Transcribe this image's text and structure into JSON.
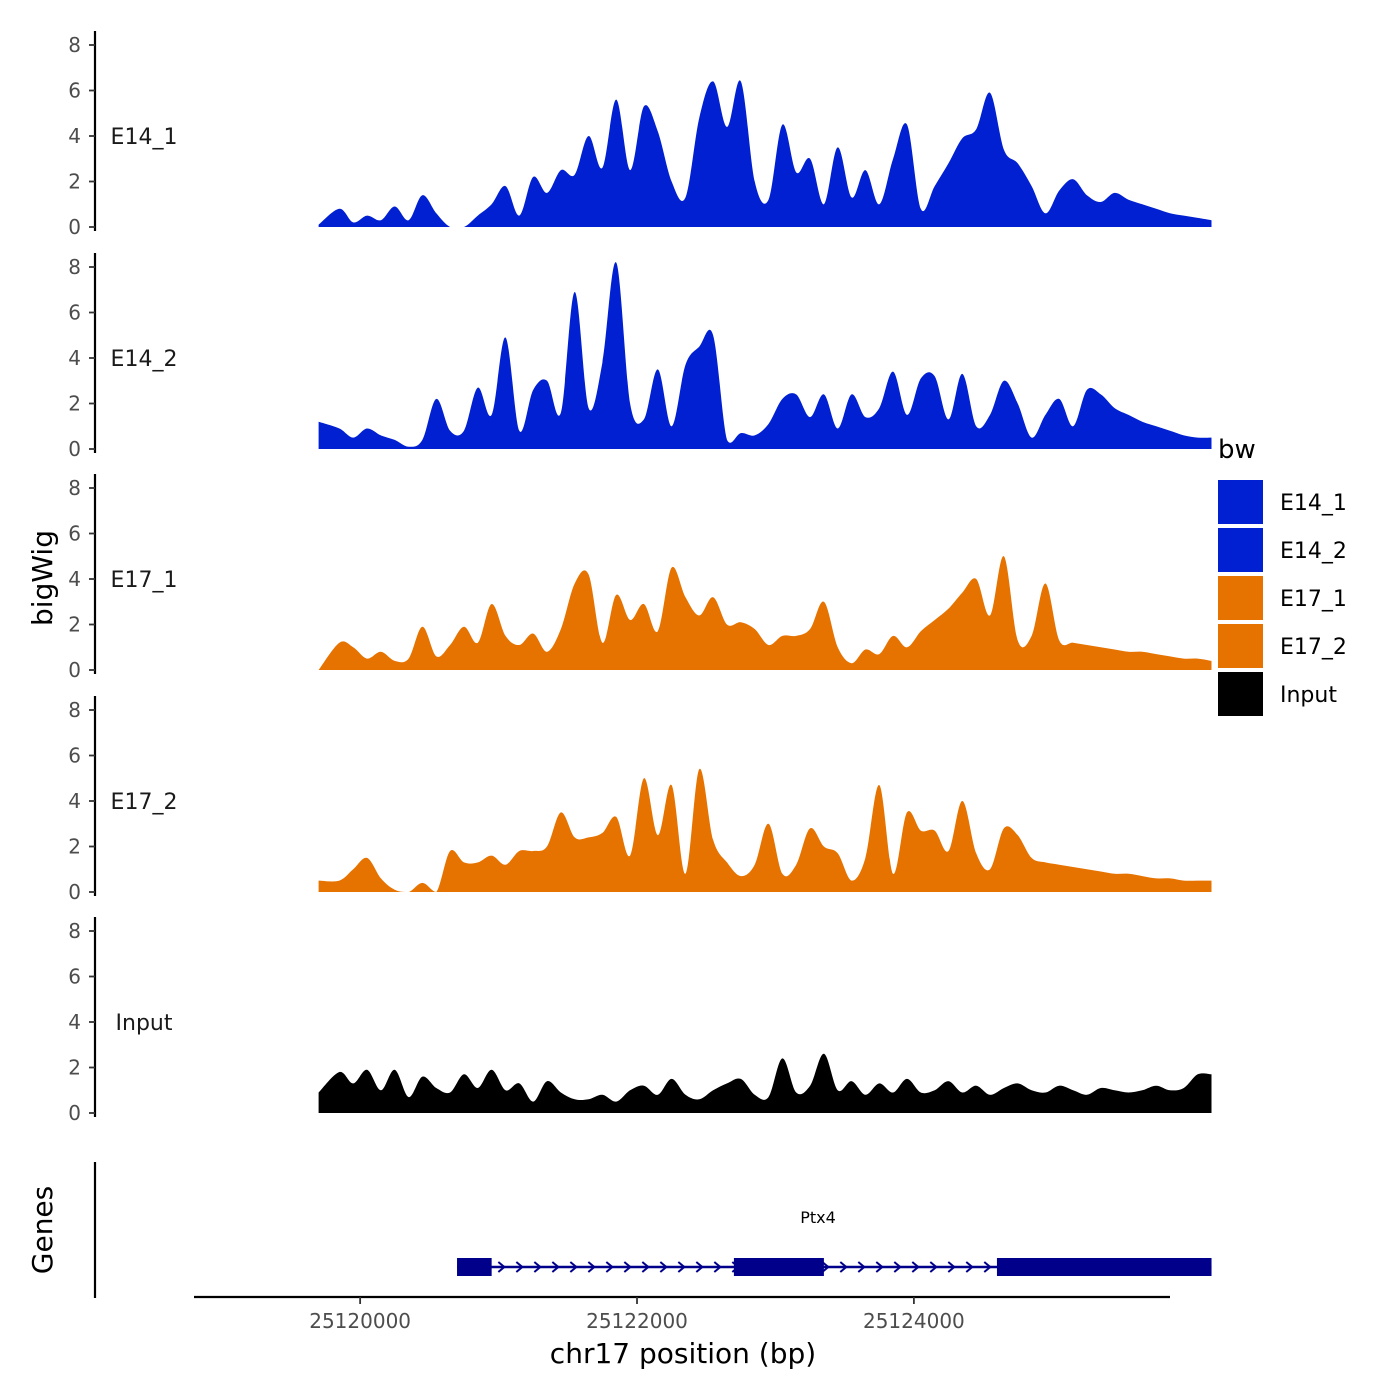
{
  "chart_data": {
    "type": "area",
    "ylabel": "bigWig",
    "xlabel": "chr17 position (bp)",
    "xlim": [
      25118800,
      25125850
    ],
    "ylim": [
      0,
      8
    ],
    "y_ticks": [
      0,
      2,
      4,
      6,
      8
    ],
    "y_tick_labels": [
      "0",
      "2",
      "4",
      "6",
      "8"
    ],
    "x_ticks": [
      25120000,
      25122000,
      25124000
    ],
    "x_tick_labels": [
      "25120000",
      "25122000",
      "25124000"
    ],
    "data_range": [
      25119700,
      25126150
    ],
    "legend": {
      "title": "bw",
      "position": "right",
      "entries": [
        {
          "label": "E14_1",
          "color": "#0020D1"
        },
        {
          "label": "E14_2",
          "color": "#0020D1"
        },
        {
          "label": "E17_1",
          "color": "#E67300"
        },
        {
          "label": "E17_2",
          "color": "#E67300"
        },
        {
          "label": "Input",
          "color": "#000000"
        }
      ]
    },
    "series": [
      {
        "name": "E14_1",
        "color": "#0020D1",
        "x": [
          25119700,
          25119850,
          25119950,
          25120050,
          25120150,
          25120250,
          25120350,
          25120450,
          25120550,
          25120650,
          25120750,
          25120850,
          25120950,
          25121050,
          25121150,
          25121250,
          25121350,
          25121450,
          25121550,
          25121650,
          25121750,
          25121850,
          25121950,
          25122050,
          25122150,
          25122250,
          25122350,
          25122450,
          25122550,
          25122650,
          25122750,
          25122850,
          25122950,
          25123050,
          25123150,
          25123250,
          25123350,
          25123450,
          25123550,
          25123650,
          25123750,
          25123850,
          25123950,
          25124050,
          25124150,
          25124250,
          25124350,
          25124450,
          25124550,
          25124650,
          25124750,
          25124850,
          25124950,
          25125050,
          25125150,
          25125250,
          25125350,
          25125450,
          25125550,
          25125650,
          25125750,
          25125850,
          25125950,
          25126050,
          25126150
        ],
        "values": [
          0.1,
          0.8,
          0.2,
          0.5,
          0.3,
          0.9,
          0.3,
          1.4,
          0.6,
          0.0,
          0.0,
          0.5,
          1.0,
          1.8,
          0.5,
          2.2,
          1.5,
          2.5,
          2.3,
          4.0,
          2.6,
          5.6,
          2.5,
          5.3,
          4.2,
          2.0,
          1.3,
          4.8,
          6.4,
          4.4,
          6.4,
          2.0,
          1.2,
          4.5,
          2.4,
          3.0,
          1.0,
          3.5,
          1.3,
          2.5,
          1.0,
          3.0,
          4.5,
          0.8,
          1.8,
          2.8,
          3.9,
          4.3,
          5.9,
          3.4,
          2.8,
          1.8,
          0.6,
          1.6,
          2.1,
          1.4,
          1.1,
          1.5,
          1.2,
          1.0,
          0.8,
          0.6,
          0.5,
          0.4,
          0.3
        ]
      },
      {
        "name": "E14_2",
        "color": "#0020D1",
        "x": [
          25119700,
          25119850,
          25119950,
          25120050,
          25120150,
          25120250,
          25120350,
          25120450,
          25120550,
          25120650,
          25120750,
          25120850,
          25120950,
          25121050,
          25121150,
          25121250,
          25121350,
          25121450,
          25121550,
          25121650,
          25121750,
          25121850,
          25121950,
          25122050,
          25122150,
          25122250,
          25122350,
          25122450,
          25122550,
          25122650,
          25122750,
          25122850,
          25122950,
          25123050,
          25123150,
          25123250,
          25123350,
          25123450,
          25123550,
          25123650,
          25123750,
          25123850,
          25123950,
          25124050,
          25124150,
          25124250,
          25124350,
          25124450,
          25124550,
          25124650,
          25124750,
          25124850,
          25124950,
          25125050,
          25125150,
          25125250,
          25125350,
          25125450,
          25125550,
          25125650,
          25125750,
          25125850,
          25125950,
          25126050,
          25126150
        ],
        "values": [
          1.2,
          0.9,
          0.5,
          0.9,
          0.6,
          0.4,
          0.1,
          0.4,
          2.2,
          0.8,
          0.8,
          2.7,
          1.5,
          4.9,
          0.8,
          2.6,
          3.0,
          1.6,
          6.9,
          1.8,
          3.8,
          8.2,
          2.0,
          1.3,
          3.5,
          1.0,
          3.7,
          4.5,
          5.0,
          0.4,
          0.7,
          0.6,
          1.1,
          2.2,
          2.4,
          1.4,
          2.4,
          0.9,
          2.4,
          1.4,
          1.8,
          3.4,
          1.5,
          3.1,
          3.2,
          1.3,
          3.3,
          1.0,
          1.5,
          3.0,
          2.0,
          0.5,
          1.5,
          2.2,
          1.0,
          2.6,
          2.4,
          1.8,
          1.5,
          1.2,
          1.0,
          0.8,
          0.6,
          0.5,
          0.5
        ]
      },
      {
        "name": "E17_1",
        "color": "#E67300",
        "x": [
          25119700,
          25119850,
          25119950,
          25120050,
          25120150,
          25120250,
          25120350,
          25120450,
          25120550,
          25120650,
          25120750,
          25120850,
          25120950,
          25121050,
          25121150,
          25121250,
          25121350,
          25121450,
          25121550,
          25121650,
          25121750,
          25121850,
          25121950,
          25122050,
          25122150,
          25122250,
          25122350,
          25122450,
          25122550,
          25122650,
          25122750,
          25122850,
          25122950,
          25123050,
          25123150,
          25123250,
          25123350,
          25123450,
          25123550,
          25123650,
          25123750,
          25123850,
          25123950,
          25124050,
          25124150,
          25124250,
          25124350,
          25124450,
          25124550,
          25124650,
          25124750,
          25124850,
          25124950,
          25125050,
          25125150,
          25125250,
          25125350,
          25125450,
          25125550,
          25125650,
          25125750,
          25125850,
          25125950,
          25126050,
          25126150
        ],
        "values": [
          0.0,
          1.2,
          1.0,
          0.5,
          0.8,
          0.4,
          0.5,
          1.9,
          0.6,
          1.1,
          1.9,
          1.2,
          2.9,
          1.5,
          1.1,
          1.6,
          0.8,
          1.8,
          3.8,
          4.2,
          1.2,
          3.3,
          2.2,
          2.9,
          1.7,
          4.5,
          3.2,
          2.4,
          3.2,
          2.0,
          2.1,
          1.8,
          1.1,
          1.5,
          1.5,
          1.8,
          3.0,
          1.0,
          0.3,
          0.9,
          0.7,
          1.5,
          1.0,
          1.7,
          2.2,
          2.7,
          3.4,
          4.0,
          2.4,
          5.0,
          1.3,
          1.5,
          3.8,
          1.3,
          1.2,
          1.1,
          1.0,
          0.9,
          0.8,
          0.8,
          0.7,
          0.6,
          0.5,
          0.5,
          0.4
        ]
      },
      {
        "name": "E17_2",
        "color": "#E67300",
        "x": [
          25119700,
          25119850,
          25119950,
          25120050,
          25120150,
          25120250,
          25120350,
          25120450,
          25120550,
          25120650,
          25120750,
          25120850,
          25120950,
          25121050,
          25121150,
          25121250,
          25121350,
          25121450,
          25121550,
          25121650,
          25121750,
          25121850,
          25121950,
          25122050,
          25122150,
          25122250,
          25122350,
          25122450,
          25122550,
          25122650,
          25122750,
          25122850,
          25122950,
          25123050,
          25123150,
          25123250,
          25123350,
          25123450,
          25123550,
          25123650,
          25123750,
          25123850,
          25123950,
          25124050,
          25124150,
          25124250,
          25124350,
          25124450,
          25124550,
          25124650,
          25124750,
          25124850,
          25124950,
          25125050,
          25125150,
          25125250,
          25125350,
          25125450,
          25125550,
          25125650,
          25125750,
          25125850,
          25125950,
          25126050,
          25126150
        ],
        "values": [
          0.5,
          0.5,
          1.0,
          1.5,
          0.6,
          0.1,
          0.0,
          0.4,
          0.0,
          1.8,
          1.3,
          1.3,
          1.6,
          1.2,
          1.8,
          1.8,
          2.0,
          3.5,
          2.4,
          2.4,
          2.6,
          3.3,
          1.6,
          5.0,
          2.5,
          4.7,
          0.8,
          5.4,
          2.3,
          1.3,
          0.7,
          1.2,
          3.0,
          0.8,
          1.2,
          2.8,
          2.0,
          1.7,
          0.5,
          1.5,
          4.7,
          0.8,
          3.5,
          2.7,
          2.7,
          1.8,
          4.0,
          1.7,
          1.0,
          2.8,
          2.5,
          1.5,
          1.3,
          1.2,
          1.1,
          1.0,
          0.9,
          0.8,
          0.8,
          0.7,
          0.6,
          0.6,
          0.5,
          0.5,
          0.5
        ]
      },
      {
        "name": "Input",
        "color": "#000000",
        "x": [
          25119700,
          25119850,
          25119950,
          25120050,
          25120150,
          25120250,
          25120350,
          25120450,
          25120550,
          25120650,
          25120750,
          25120850,
          25120950,
          25121050,
          25121150,
          25121250,
          25121350,
          25121450,
          25121550,
          25121650,
          25121750,
          25121850,
          25121950,
          25122050,
          25122150,
          25122250,
          25122350,
          25122450,
          25122550,
          25122650,
          25122750,
          25122850,
          25122950,
          25123050,
          25123150,
          25123250,
          25123350,
          25123450,
          25123550,
          25123650,
          25123750,
          25123850,
          25123950,
          25124050,
          25124150,
          25124250,
          25124350,
          25124450,
          25124550,
          25124650,
          25124750,
          25124850,
          25124950,
          25125050,
          25125150,
          25125250,
          25125350,
          25125450,
          25125550,
          25125650,
          25125750,
          25125850,
          25125950,
          25126050,
          25126150
        ],
        "values": [
          0.9,
          1.8,
          1.3,
          1.9,
          1.0,
          1.9,
          0.7,
          1.6,
          1.1,
          0.9,
          1.7,
          1.1,
          1.9,
          1.0,
          1.3,
          0.5,
          1.4,
          0.9,
          0.6,
          0.6,
          0.8,
          0.5,
          1.0,
          1.2,
          0.8,
          1.5,
          0.8,
          0.6,
          1.0,
          1.3,
          1.5,
          0.8,
          0.7,
          2.4,
          0.9,
          1.2,
          2.6,
          1.0,
          1.4,
          0.8,
          1.3,
          0.9,
          1.5,
          0.9,
          1.0,
          1.4,
          0.9,
          1.2,
          0.8,
          1.1,
          1.3,
          1.0,
          0.9,
          1.2,
          1.0,
          0.8,
          1.1,
          1.0,
          0.9,
          1.0,
          1.2,
          1.0,
          1.1,
          1.7,
          1.7
        ]
      }
    ],
    "gene_track": {
      "ylabel": "Genes",
      "gene_name": "Ptx4",
      "strand": "+",
      "start": 25120700,
      "end": 25126150,
      "exons": [
        {
          "start": 25120700,
          "end": 25120950
        },
        {
          "start": 25122700,
          "end": 25123350
        },
        {
          "start": 25124600,
          "end": 25126150
        }
      ],
      "color": "#00008B"
    }
  }
}
